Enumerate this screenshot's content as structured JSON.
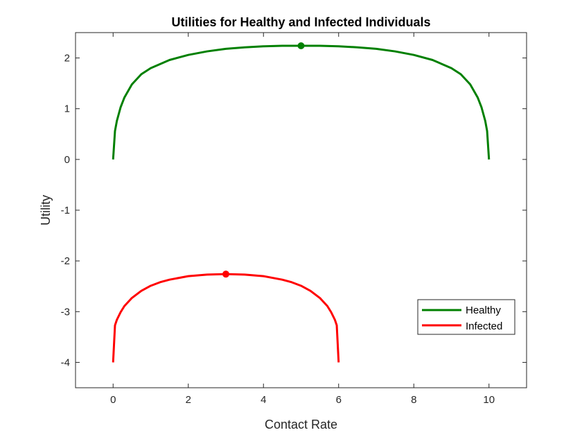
{
  "chart_data": {
    "type": "line",
    "title": "Utilities for Healthy and Infected Individuals",
    "xlabel": "Contact Rate",
    "ylabel": "Utility",
    "xlim": [
      -1,
      11
    ],
    "ylim": [
      -4.5,
      2.5
    ],
    "xticks": [
      0,
      2,
      4,
      6,
      8,
      10
    ],
    "yticks": [
      2,
      1,
      0,
      -1,
      -2,
      -3,
      -4
    ],
    "xtick_labels": [
      "0",
      "2",
      "4",
      "6",
      "8",
      "10"
    ],
    "ytick_labels": [
      "2",
      "1",
      "0",
      "-1",
      "-2",
      "-3",
      "-4"
    ],
    "grid": false,
    "legend_placement": "lower-right",
    "series": [
      {
        "name": "Healthy",
        "color": "#008000",
        "x": [
          0,
          0.05,
          0.1,
          0.2,
          0.3,
          0.5,
          0.75,
          1,
          1.5,
          2,
          2.5,
          3,
          3.5,
          4,
          4.5,
          5,
          5.5,
          6,
          6.5,
          7,
          7.5,
          8,
          8.5,
          9,
          9.25,
          9.5,
          9.7,
          9.8,
          9.9,
          9.95,
          10
        ],
        "y": [
          0,
          0.56,
          0.76,
          1.03,
          1.22,
          1.48,
          1.68,
          1.8,
          1.96,
          2.06,
          2.13,
          2.18,
          2.21,
          2.23,
          2.24,
          2.24,
          2.24,
          2.23,
          2.21,
          2.18,
          2.13,
          2.06,
          1.96,
          1.8,
          1.68,
          1.48,
          1.22,
          1.03,
          0.76,
          0.56,
          0
        ],
        "optimum": {
          "x": 5,
          "y": 2.24
        }
      },
      {
        "name": "Infected",
        "color": "#ff0000",
        "x": [
          0,
          0.05,
          0.1,
          0.2,
          0.3,
          0.5,
          0.75,
          1,
          1.25,
          1.5,
          2,
          2.5,
          3,
          3.5,
          4,
          4.5,
          4.75,
          5,
          5.25,
          5.5,
          5.7,
          5.8,
          5.9,
          5.95,
          6
        ],
        "y": [
          -4,
          -3.27,
          -3.16,
          -3.01,
          -2.89,
          -2.73,
          -2.59,
          -2.49,
          -2.42,
          -2.37,
          -2.3,
          -2.27,
          -2.26,
          -2.27,
          -2.3,
          -2.37,
          -2.42,
          -2.49,
          -2.59,
          -2.73,
          -2.89,
          -3.01,
          -3.16,
          -3.27,
          -4
        ],
        "optimum": {
          "x": 3,
          "y": -2.26
        }
      }
    ]
  }
}
